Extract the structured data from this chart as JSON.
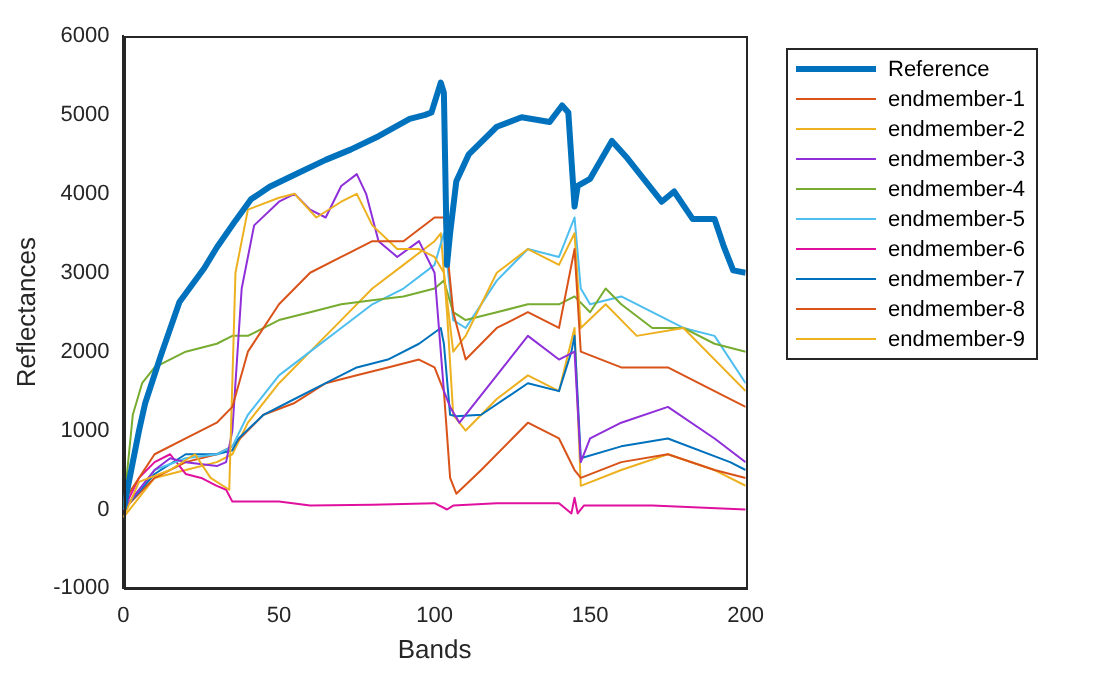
{
  "chart_data": {
    "type": "line",
    "xlabel": "Bands",
    "ylabel": "Reflectances",
    "xlim": [
      0,
      200
    ],
    "xticks": [
      0,
      50,
      100,
      150,
      200
    ],
    "ylim": [
      -1000,
      6000
    ],
    "yticks": [
      -1000,
      0,
      1000,
      2000,
      3000,
      4000,
      5000,
      6000
    ],
    "grid": false,
    "legend": "right",
    "marker": "none",
    "line_style": "solid",
    "series": [
      {
        "name": "Reference",
        "color": "#0072bd",
        "x": [
          0,
          3,
          5,
          7,
          12,
          18,
          26,
          30,
          36,
          41,
          47,
          56,
          65,
          73,
          82,
          92,
          97,
          99,
          102,
          103,
          104,
          105,
          107,
          111,
          120,
          128,
          137,
          141,
          143,
          145,
          146,
          150,
          157,
          162,
          173,
          177,
          183,
          190,
          193,
          196,
          200
        ],
        "values": [
          0,
          600,
          1000,
          1350,
          1950,
          2630,
          3060,
          3320,
          3660,
          3930,
          4090,
          4260,
          4430,
          4560,
          4730,
          4950,
          5000,
          5030,
          5410,
          5280,
          3100,
          3500,
          4160,
          4500,
          4850,
          4970,
          4910,
          5120,
          5030,
          3840,
          4100,
          4190,
          4670,
          4450,
          3900,
          4030,
          3680,
          3680,
          3330,
          3030,
          3000
        ]
      },
      {
        "name": "endmember-1",
        "color": "#d95319",
        "x": [
          0,
          10,
          20,
          30,
          35,
          40,
          50,
          60,
          70,
          80,
          90,
          100,
          103,
          106,
          110,
          120,
          130,
          140,
          145,
          147,
          160,
          175,
          190,
          200
        ],
        "values": [
          100,
          700,
          900,
          1100,
          1300,
          2000,
          2600,
          3000,
          3200,
          3400,
          3400,
          3700,
          3700,
          2500,
          1900,
          2300,
          2500,
          2300,
          3300,
          2000,
          1800,
          1800,
          1500,
          1300
        ]
      },
      {
        "name": "endmember-2",
        "color": "#edb120",
        "x": [
          0,
          5,
          15,
          23,
          28,
          34,
          36,
          40,
          50,
          55,
          62,
          70,
          75,
          80,
          88,
          95,
          100,
          103,
          106,
          110,
          120,
          130,
          140,
          145,
          147,
          155,
          165,
          180,
          200
        ],
        "values": [
          -100,
          350,
          500,
          700,
          400,
          250,
          3000,
          3800,
          3950,
          4000,
          3700,
          3900,
          4000,
          3600,
          3300,
          3300,
          3200,
          3000,
          2000,
          2200,
          3000,
          3300,
          3100,
          3500,
          2300,
          2600,
          2200,
          2300,
          1500
        ]
      },
      {
        "name": "endmember-3",
        "color": "#8e2fd9",
        "x": [
          0,
          10,
          15,
          20,
          30,
          33,
          35,
          38,
          42,
          50,
          55,
          60,
          65,
          70,
          75,
          78,
          82,
          88,
          95,
          100,
          103,
          105,
          108,
          120,
          130,
          140,
          145,
          147,
          150,
          160,
          175,
          190,
          200
        ],
        "values": [
          0,
          500,
          650,
          600,
          550,
          600,
          1000,
          2800,
          3600,
          3900,
          4000,
          3800,
          3700,
          4100,
          4250,
          4000,
          3400,
          3200,
          3400,
          3000,
          1500,
          1300,
          1100,
          1700,
          2200,
          1900,
          2000,
          600,
          900,
          1100,
          1300,
          900,
          600
        ]
      },
      {
        "name": "endmember-4",
        "color": "#77ac30",
        "x": [
          0,
          3,
          6,
          10,
          20,
          30,
          35,
          40,
          50,
          60,
          70,
          80,
          90,
          100,
          103,
          106,
          110,
          120,
          130,
          140,
          145,
          150,
          155,
          160,
          170,
          180,
          190,
          200
        ],
        "values": [
          0,
          1200,
          1600,
          1800,
          2000,
          2100,
          2200,
          2200,
          2400,
          2500,
          2600,
          2650,
          2700,
          2800,
          2900,
          2500,
          2400,
          2500,
          2600,
          2600,
          2700,
          2500,
          2800,
          2600,
          2300,
          2300,
          2100,
          2000
        ]
      },
      {
        "name": "endmember-5",
        "color": "#4dbeee",
        "x": [
          0,
          10,
          20,
          30,
          35,
          40,
          50,
          60,
          70,
          80,
          90,
          100,
          103,
          106,
          110,
          120,
          130,
          140,
          145,
          147,
          150,
          160,
          170,
          180,
          190,
          200
        ],
        "values": [
          0,
          500,
          650,
          700,
          800,
          1200,
          1700,
          2000,
          2300,
          2600,
          2800,
          3100,
          3500,
          2400,
          2300,
          2900,
          3300,
          3200,
          3700,
          2800,
          2600,
          2700,
          2500,
          2300,
          2200,
          1600
        ]
      },
      {
        "name": "endmember-6",
        "color": "#e0109f",
        "x": [
          0,
          5,
          10,
          15,
          20,
          25,
          30,
          33,
          35,
          50,
          60,
          80,
          100,
          104,
          106,
          120,
          140,
          144,
          145,
          146,
          148,
          170,
          200
        ],
        "values": [
          0,
          400,
          600,
          700,
          450,
          400,
          300,
          250,
          100,
          100,
          50,
          60,
          80,
          0,
          50,
          80,
          80,
          -50,
          150,
          -50,
          50,
          50,
          0
        ]
      },
      {
        "name": "endmember-7",
        "color": "#0072bd",
        "x": [
          0,
          10,
          20,
          30,
          35,
          37,
          45,
          55,
          65,
          75,
          85,
          95,
          102,
          103,
          105,
          107,
          115,
          130,
          140,
          144,
          145,
          147,
          160,
          175,
          195,
          200
        ],
        "values": [
          0,
          450,
          700,
          700,
          750,
          900,
          1200,
          1400,
          1600,
          1800,
          1900,
          2100,
          2300,
          2100,
          1200,
          1180,
          1200,
          1600,
          1500,
          2000,
          2200,
          650,
          800,
          900,
          600,
          500
        ]
      },
      {
        "name": "endmember-8",
        "color": "#d95319",
        "x": [
          0,
          10,
          20,
          30,
          35,
          45,
          55,
          65,
          75,
          85,
          95,
          100,
          103,
          105,
          107,
          115,
          125,
          130,
          140,
          145,
          147,
          160,
          175,
          190,
          200
        ],
        "values": [
          0,
          400,
          600,
          700,
          800,
          1200,
          1350,
          1600,
          1700,
          1800,
          1900,
          1800,
          1500,
          400,
          200,
          500,
          900,
          1100,
          900,
          500,
          400,
          600,
          700,
          500,
          400
        ]
      },
      {
        "name": "endmember-9",
        "color": "#edb120",
        "x": [
          0,
          10,
          20,
          30,
          35,
          40,
          50,
          60,
          70,
          80,
          90,
          100,
          102,
          104,
          106,
          110,
          120,
          130,
          140,
          145,
          147,
          160,
          175,
          190,
          200
        ],
        "values": [
          -100,
          400,
          500,
          600,
          700,
          1100,
          1600,
          2000,
          2400,
          2800,
          3100,
          3400,
          3500,
          2500,
          1200,
          1000,
          1400,
          1700,
          1500,
          2300,
          300,
          500,
          700,
          500,
          300
        ]
      }
    ]
  }
}
